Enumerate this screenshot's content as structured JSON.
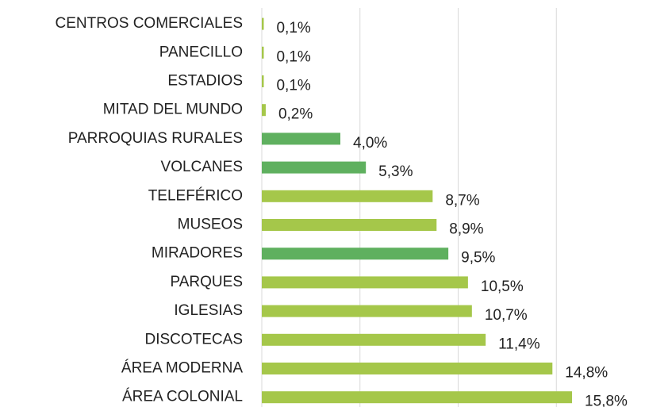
{
  "chart_data": {
    "type": "bar",
    "orientation": "horizontal",
    "categories": [
      "CENTROS COMERCIALES",
      "PANECILLO",
      "ESTADIOS",
      "MITAD DEL MUNDO",
      "PARROQUIAS RURALES",
      "VOLCANES",
      "TELEFÉRICO",
      "MUSEOS",
      "MIRADORES",
      "PARQUES",
      "IGLESIAS",
      "DISCOTECAS",
      "ÁREA MODERNA",
      "ÁREA COLONIAL"
    ],
    "values": [
      0.1,
      0.1,
      0.1,
      0.2,
      4.0,
      5.3,
      8.7,
      8.9,
      9.5,
      10.5,
      10.7,
      11.4,
      14.8,
      15.8
    ],
    "value_labels": [
      "0,1%",
      "0,1%",
      "0,1%",
      "0,2%",
      "4,0%",
      "5,3%",
      "8,7%",
      "8,9%",
      "9,5%",
      "10,5%",
      "10,7%",
      "11,4%",
      "14,8%",
      "15,8%"
    ],
    "colors": [
      "#a5c74a",
      "#a5c74a",
      "#a5c74a",
      "#a5c74a",
      "#5fb05f",
      "#5fb05f",
      "#a5c74a",
      "#a5c74a",
      "#5fb05f",
      "#a5c74a",
      "#a5c74a",
      "#a5c74a",
      "#a5c74a",
      "#a5c74a"
    ],
    "xlim": [
      0,
      18
    ],
    "xticks": [
      0,
      5,
      10,
      15
    ],
    "grid": true
  }
}
